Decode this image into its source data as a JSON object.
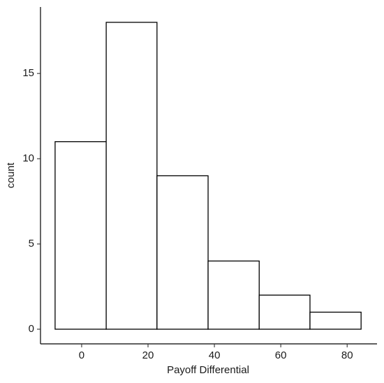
{
  "chart_data": {
    "type": "histogram",
    "x_label": "Payoff Differential",
    "y_label": "count",
    "bins": [
      -8,
      7.4,
      22.7,
      38.1,
      53.5,
      68.8,
      84.2
    ],
    "values": [
      11,
      18,
      9,
      4,
      2,
      1
    ],
    "color": "#ffffff",
    "edgecolor": "#000000",
    "xlim": [
      -12.4,
      89
    ],
    "ylim": [
      -0.86,
      18.9
    ],
    "xticks": [
      0,
      20,
      40,
      60,
      80
    ],
    "yticks": [
      0,
      5,
      10,
      15
    ],
    "grid": false
  }
}
